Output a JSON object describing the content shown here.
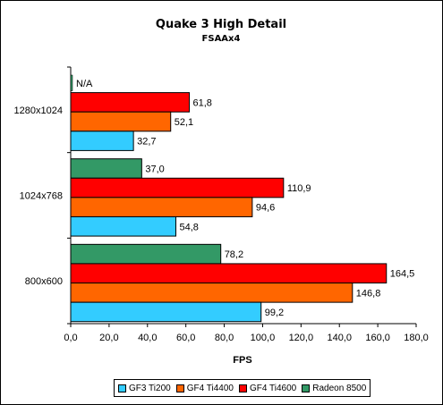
{
  "chart_data": {
    "type": "bar",
    "orientation": "horizontal",
    "title": "Quake 3 High Detail",
    "subtitle": "FSAAx4",
    "xlabel": "FPS",
    "ylabel": "",
    "xlim": [
      0,
      180
    ],
    "x_ticks": [
      "0,0",
      "20,0",
      "40,0",
      "60,0",
      "80,0",
      "100,0",
      "120,0",
      "140,0",
      "160,0",
      "180,0"
    ],
    "categories": [
      "1280x1024",
      "1024x768",
      "800x600"
    ],
    "series": [
      {
        "name": "GF3 Ti200",
        "color": "#33ccff",
        "values": [
          32.7,
          54.8,
          99.2
        ],
        "labels": [
          "32,7",
          "54,8",
          "99,2"
        ]
      },
      {
        "name": "GF4 Ti4400",
        "color": "#ff6600",
        "values": [
          52.1,
          94.6,
          146.8
        ],
        "labels": [
          "52,1",
          "94,6",
          "146,8"
        ]
      },
      {
        "name": "GF4 Ti4600",
        "color": "#ff0000",
        "values": [
          61.8,
          110.9,
          164.5
        ],
        "labels": [
          "61,8",
          "110,9",
          "164,5"
        ]
      },
      {
        "name": "Radeon 8500",
        "color": "#339966",
        "values": [
          null,
          37.0,
          78.2
        ],
        "labels": [
          "N/A",
          "37,0",
          "78,2"
        ]
      }
    ],
    "grid": false,
    "legend_position": "bottom"
  }
}
